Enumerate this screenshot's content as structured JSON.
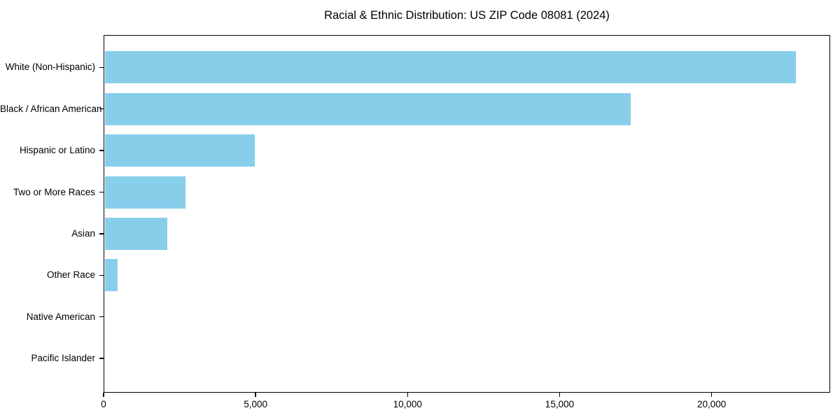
{
  "colors": {
    "bar": "#87CEEB",
    "axis": "#000000",
    "text": "#000000",
    "background": "#ffffff"
  },
  "chart_data": {
    "type": "bar",
    "orientation": "horizontal",
    "title": "Racial & Ethnic Distribution: US ZIP Code 08081 (2024)",
    "xlabel": "",
    "ylabel": "",
    "categories": [
      "White (Non-Hispanic)",
      "Black / African American",
      "Hispanic or Latino",
      "Two or More Races",
      "Asian",
      "Other Race",
      "Native American",
      "Pacific Islander"
    ],
    "values": [
      22770,
      17330,
      4970,
      2690,
      2100,
      460,
      20,
      10
    ],
    "xlim": [
      0,
      23900
    ],
    "x_ticks": [
      0,
      5000,
      10000,
      15000,
      20000
    ],
    "x_tick_labels": [
      "0",
      "5,000",
      "10,000",
      "15,000",
      "20,000"
    ],
    "grid": false,
    "legend": null
  }
}
